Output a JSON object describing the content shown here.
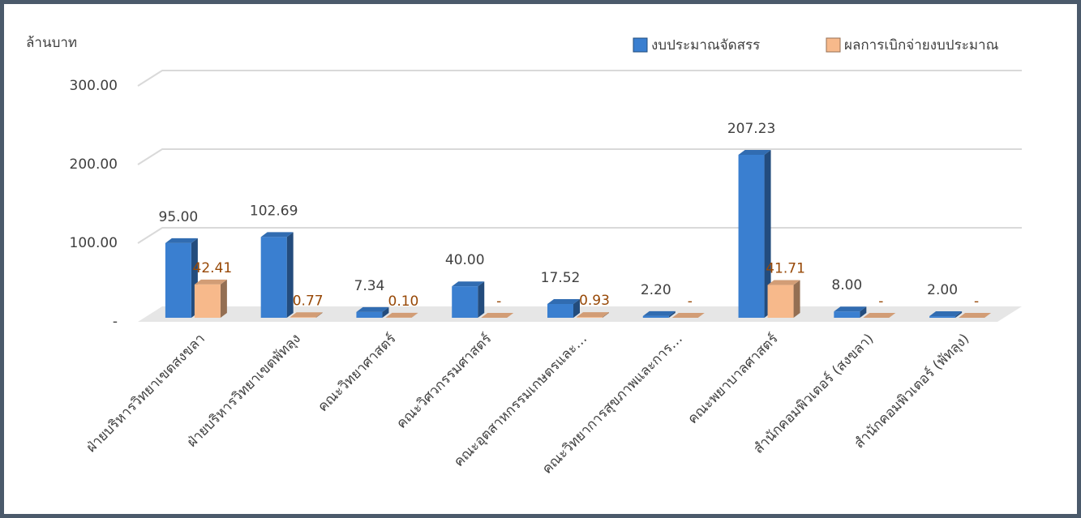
{
  "chart_data": {
    "type": "bar3d",
    "y_label": "ล้านบาท",
    "categories": [
      "ฝ่ายบริหารวิทยาเขตสงขลา",
      "ฝ่ายบริหารวิทยาเขตพัทลุง",
      "คณะวิทยาศาสตร์",
      "คณะวิศวกรรมศาสตร์",
      "คณะอุตสาหกรรมเกษตรและ…",
      "คณะวิทยาการสุขภาพและการ…",
      "คณะพยาบาลศาสตร์",
      "สำนักคอมพิวเตอร์ (สงขลา)",
      "สำนักคอมพิวเตอร์ (พัทลุง)"
    ],
    "series": [
      {
        "name": "งบประมาณจัดสรร",
        "color": "#3a7fd0",
        "label_color": "#404040",
        "values": [
          95.0,
          102.69,
          7.34,
          40.0,
          17.52,
          2.2,
          207.23,
          8.0,
          2.0
        ],
        "value_labels": [
          "95.00",
          "102.69",
          "7.34",
          "40.00",
          "17.52",
          "2.20",
          "207.23",
          "8.00",
          "2.00"
        ]
      },
      {
        "name": "ผลการเบิกจ่ายงบประมาณ",
        "color": "#f7b98b",
        "label_color": "#974806",
        "values": [
          42.41,
          0.77,
          0.1,
          0,
          0.93,
          0,
          41.71,
          0,
          0
        ],
        "value_labels": [
          "42.41",
          "0.77",
          "0.10",
          "-",
          "0.93",
          "-",
          "41.71",
          "-",
          "-"
        ]
      }
    ],
    "ylim": [
      0,
      300
    ],
    "yticks": [
      {
        "value": 0,
        "label": "-"
      },
      {
        "value": 100,
        "label": "100.00"
      },
      {
        "value": 200,
        "label": "200.00"
      },
      {
        "value": 300,
        "label": "300.00"
      }
    ],
    "grid": true,
    "legend": "top-right"
  }
}
